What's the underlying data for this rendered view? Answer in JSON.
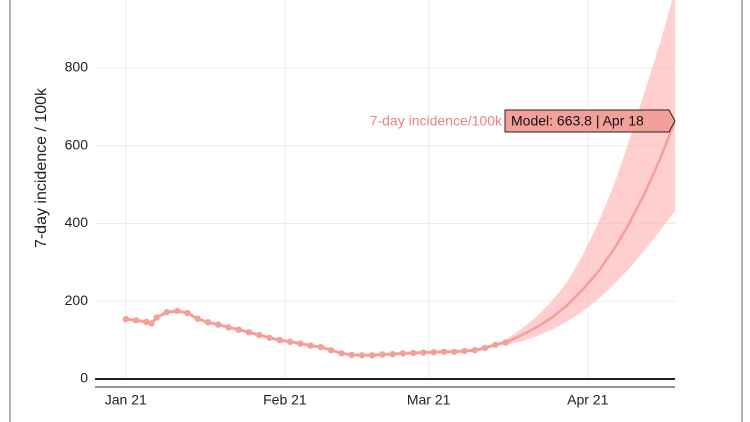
{
  "chart_data": {
    "type": "line",
    "y_label": "7-day incidence / 100k",
    "xlim": [
      "2020-12-26",
      "2021-04-18"
    ],
    "xticks": [
      {
        "value": "2021-01-01",
        "label": "Jan 21"
      },
      {
        "value": "2021-02-01",
        "label": "Feb 21"
      },
      {
        "value": "2021-03-01",
        "label": "Mar 21"
      },
      {
        "value": "2021-04-01",
        "label": "Apr 21"
      }
    ],
    "ylim": [
      0,
      975
    ],
    "yticks": [
      0,
      200,
      400,
      600,
      800
    ],
    "grid": true,
    "band": {
      "color": "#ffb3b3",
      "x": [
        "2021-03-16",
        "2021-03-19",
        "2021-03-22",
        "2021-03-25",
        "2021-03-28",
        "2021-03-31",
        "2021-04-03",
        "2021-04-06",
        "2021-04-09",
        "2021-04-12",
        "2021-04-15",
        "2021-04-18"
      ],
      "upper": [
        100,
        128,
        160,
        200,
        250,
        318,
        400,
        495,
        610,
        735,
        860,
        1000
      ],
      "lower": [
        88,
        96,
        110,
        127,
        148,
        174,
        205,
        242,
        283,
        330,
        380,
        432
      ]
    },
    "series": [
      {
        "color": "#f4a09a",
        "markers": true,
        "x": [
          "2021-01-01",
          "2021-01-03",
          "2021-01-05",
          "2021-01-06",
          "2021-01-07",
          "2021-01-09",
          "2021-01-11",
          "2021-01-13",
          "2021-01-15",
          "2021-01-17",
          "2021-01-19",
          "2021-01-21",
          "2021-01-23",
          "2021-01-25",
          "2021-01-27",
          "2021-01-29",
          "2021-01-31",
          "2021-02-02",
          "2021-02-04",
          "2021-02-06",
          "2021-02-08",
          "2021-02-10",
          "2021-02-12",
          "2021-02-14",
          "2021-02-16",
          "2021-02-18",
          "2021-02-20",
          "2021-02-22",
          "2021-02-24",
          "2021-02-26",
          "2021-02-28",
          "2021-03-02",
          "2021-03-04",
          "2021-03-06",
          "2021-03-08",
          "2021-03-10",
          "2021-03-12",
          "2021-03-14",
          "2021-03-16"
        ],
        "values": [
          154,
          151,
          147,
          143,
          158,
          172,
          175,
          170,
          155,
          146,
          140,
          133,
          127,
          120,
          113,
          106,
          100,
          96,
          91,
          86,
          82,
          74,
          66,
          62,
          61,
          61,
          63,
          64,
          66,
          67,
          68,
          69,
          70,
          70,
          72,
          74,
          80,
          88,
          94
        ]
      },
      {
        "color": "#f4a09a",
        "markers": false,
        "x": [
          "2021-03-16",
          "2021-03-19",
          "2021-03-22",
          "2021-03-25",
          "2021-03-28",
          "2021-03-31",
          "2021-04-03",
          "2021-04-06",
          "2021-04-09",
          "2021-04-12",
          "2021-04-15",
          "2021-04-18"
        ],
        "values": [
          94,
          112,
          133,
          158,
          190,
          230,
          275,
          332,
          398,
          475,
          563,
          663.8
        ]
      }
    ],
    "hover": {
      "name": "7-day incidence/100k",
      "text": "Model: 663.8 | Apr 18"
    }
  }
}
